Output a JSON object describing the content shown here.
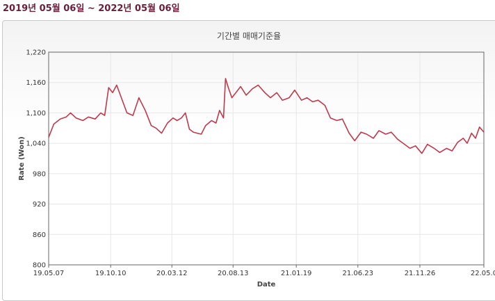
{
  "header": {
    "date_range": "2019년 05월 06일  ~  2022년 05월 06일"
  },
  "colors": {
    "line": "#c0394b",
    "grid": "#e6e6e6",
    "axis": "#666666",
    "range_text": "#6b1d3a"
  },
  "chart_data": {
    "type": "line",
    "title": "기간별 매매기준율",
    "xlabel": "Date",
    "ylabel": "Rate (Won)",
    "ylim": [
      800,
      1220
    ],
    "yticks": [
      800,
      860,
      920,
      980,
      1040,
      1100,
      1160,
      1220
    ],
    "ytick_labels": [
      "800",
      "860",
      "920",
      "980",
      "1,040",
      "1,100",
      "1,160",
      "1,220"
    ],
    "xlim": [
      "2019-05-07",
      "2022-05-06"
    ],
    "xticks": [
      "2019-05-07",
      "2019-10-10",
      "2020-03-12",
      "2020-08-13",
      "2021-01-19",
      "2021-06-23",
      "2021-11-26",
      "2022-05-06"
    ],
    "xtick_labels": [
      "19.05.07",
      "19.10.10",
      "20.03.12",
      "20.08.13",
      "21.01.19",
      "21.06.23",
      "21.11.26",
      "22.05.0"
    ],
    "grid": true,
    "series": [
      {
        "points": [
          [
            "2019-05-07",
            1052
          ],
          [
            "2019-05-20",
            1078
          ],
          [
            "2019-06-05",
            1088
          ],
          [
            "2019-06-20",
            1092
          ],
          [
            "2019-07-01",
            1100
          ],
          [
            "2019-07-15",
            1090
          ],
          [
            "2019-08-01",
            1085
          ],
          [
            "2019-08-15",
            1092
          ],
          [
            "2019-09-01",
            1088
          ],
          [
            "2019-09-15",
            1100
          ],
          [
            "2019-09-25",
            1095
          ],
          [
            "2019-10-05",
            1150
          ],
          [
            "2019-10-15",
            1140
          ],
          [
            "2019-10-25",
            1155
          ],
          [
            "2019-11-05",
            1132
          ],
          [
            "2019-11-20",
            1100
          ],
          [
            "2019-12-05",
            1095
          ],
          [
            "2019-12-20",
            1130
          ],
          [
            "2020-01-05",
            1105
          ],
          [
            "2020-01-20",
            1075
          ],
          [
            "2020-02-01",
            1070
          ],
          [
            "2020-02-15",
            1060
          ],
          [
            "2020-03-01",
            1080
          ],
          [
            "2020-03-15",
            1090
          ],
          [
            "2020-03-25",
            1085
          ],
          [
            "2020-04-05",
            1090
          ],
          [
            "2020-04-15",
            1100
          ],
          [
            "2020-04-25",
            1068
          ],
          [
            "2020-05-05",
            1062
          ],
          [
            "2020-05-15",
            1060
          ],
          [
            "2020-05-25",
            1058
          ],
          [
            "2020-06-05",
            1075
          ],
          [
            "2020-06-20",
            1085
          ],
          [
            "2020-07-01",
            1080
          ],
          [
            "2020-07-10",
            1105
          ],
          [
            "2020-07-20",
            1090
          ],
          [
            "2020-07-25",
            1168
          ],
          [
            "2020-08-01",
            1150
          ],
          [
            "2020-08-10",
            1130
          ],
          [
            "2020-08-20",
            1140
          ],
          [
            "2020-09-01",
            1152
          ],
          [
            "2020-09-15",
            1135
          ],
          [
            "2020-10-01",
            1148
          ],
          [
            "2020-10-15",
            1155
          ],
          [
            "2020-11-01",
            1140
          ],
          [
            "2020-11-15",
            1130
          ],
          [
            "2020-12-01",
            1140
          ],
          [
            "2020-12-15",
            1125
          ],
          [
            "2021-01-01",
            1130
          ],
          [
            "2021-01-15",
            1145
          ],
          [
            "2021-02-01",
            1125
          ],
          [
            "2021-02-15",
            1130
          ],
          [
            "2021-03-01",
            1122
          ],
          [
            "2021-03-15",
            1125
          ],
          [
            "2021-04-01",
            1115
          ],
          [
            "2021-04-15",
            1090
          ],
          [
            "2021-05-01",
            1085
          ],
          [
            "2021-05-15",
            1088
          ],
          [
            "2021-06-01",
            1060
          ],
          [
            "2021-06-15",
            1045
          ],
          [
            "2021-07-01",
            1062
          ],
          [
            "2021-07-15",
            1058
          ],
          [
            "2021-08-01",
            1050
          ],
          [
            "2021-08-15",
            1065
          ],
          [
            "2021-09-01",
            1058
          ],
          [
            "2021-09-15",
            1062
          ],
          [
            "2021-10-01",
            1048
          ],
          [
            "2021-10-15",
            1040
          ],
          [
            "2021-11-01",
            1030
          ],
          [
            "2021-11-15",
            1035
          ],
          [
            "2021-12-01",
            1020
          ],
          [
            "2021-12-15",
            1038
          ],
          [
            "2022-01-01",
            1030
          ],
          [
            "2022-01-15",
            1022
          ],
          [
            "2022-02-01",
            1030
          ],
          [
            "2022-02-15",
            1025
          ],
          [
            "2022-03-01",
            1042
          ],
          [
            "2022-03-15",
            1050
          ],
          [
            "2022-03-25",
            1040
          ],
          [
            "2022-04-05",
            1060
          ],
          [
            "2022-04-15",
            1050
          ],
          [
            "2022-04-25",
            1072
          ],
          [
            "2022-05-06",
            1062
          ]
        ]
      }
    ]
  }
}
